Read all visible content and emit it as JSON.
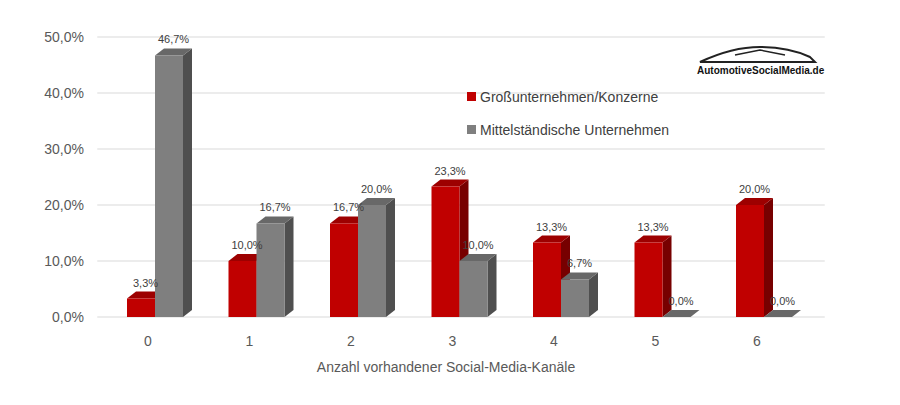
{
  "chart_data": {
    "type": "bar",
    "x_label": "Anzahl vorhandener Social-Media-Kanäle",
    "annotations": [
      "AutomotiveSocialMedia.de"
    ],
    "categories": [
      "0",
      "1",
      "2",
      "3",
      "4",
      "5",
      "6"
    ],
    "series": [
      {
        "name": "Großunternehmen/Konzerne",
        "color": "#c00000",
        "values": [
          3.3,
          10.0,
          16.7,
          23.3,
          13.3,
          13.3,
          20.0
        ],
        "value_labels": [
          "3,3%",
          "10,0%",
          "16,7%",
          "23,3%",
          "13,3%",
          "13,3%",
          "20,0%"
        ]
      },
      {
        "name": "Mittelständische Unternehmen",
        "color": "#7f7f7f",
        "values": [
          46.7,
          16.7,
          20.0,
          10.0,
          6.7,
          0.0,
          0.0
        ],
        "value_labels": [
          "46,7%",
          "16,7%",
          "20,0%",
          "10,0%",
          "6,7%",
          "0,0%",
          "0,0%"
        ]
      }
    ],
    "ylim": [
      0,
      50
    ],
    "yticks": [
      {
        "value": 0,
        "label": "0,0%"
      },
      {
        "value": 10,
        "label": "10,0%"
      },
      {
        "value": 20,
        "label": "20,0%"
      },
      {
        "value": 30,
        "label": "30,0%"
      },
      {
        "value": 40,
        "label": "40,0%"
      },
      {
        "value": 50,
        "label": "50,0%"
      }
    ],
    "grid": true,
    "legend": "upper right",
    "data_labels": true
  }
}
